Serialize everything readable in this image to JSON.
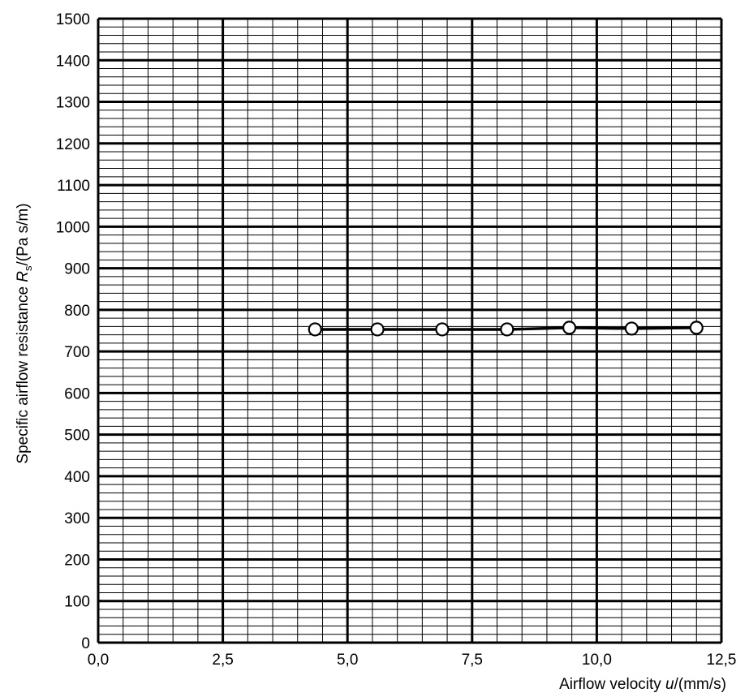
{
  "chart_data": {
    "type": "line",
    "xlabel_prefix": "Airflow velocity ",
    "xlabel_var": "u",
    "xlabel_suffix": "/(mm/s)",
    "ylabel_prefix": "Specific airflow resistance ",
    "ylabel_var": "R",
    "ylabel_sub": "s",
    "ylabel_suffix": "/(Pa s/m)",
    "xlim": [
      0,
      12.5
    ],
    "ylim": [
      0,
      1500
    ],
    "x_ticks": [
      "0,0",
      "2,5",
      "5,0",
      "7,5",
      "10,0",
      "12,5"
    ],
    "y_ticks": [
      "0",
      "100",
      "200",
      "300",
      "400",
      "500",
      "600",
      "700",
      "800",
      "900",
      "1000",
      "1100",
      "1200",
      "1300",
      "1400",
      "1500"
    ],
    "grid": true,
    "series": [
      {
        "marker": "open-circle",
        "color": "#000000",
        "points": [
          {
            "x": 4.35,
            "y": 753
          },
          {
            "x": 5.6,
            "y": 753
          },
          {
            "x": 6.9,
            "y": 753
          },
          {
            "x": 8.2,
            "y": 753
          },
          {
            "x": 9.45,
            "y": 757
          },
          {
            "x": 10.7,
            "y": 755
          },
          {
            "x": 12.0,
            "y": 757
          }
        ]
      }
    ]
  }
}
